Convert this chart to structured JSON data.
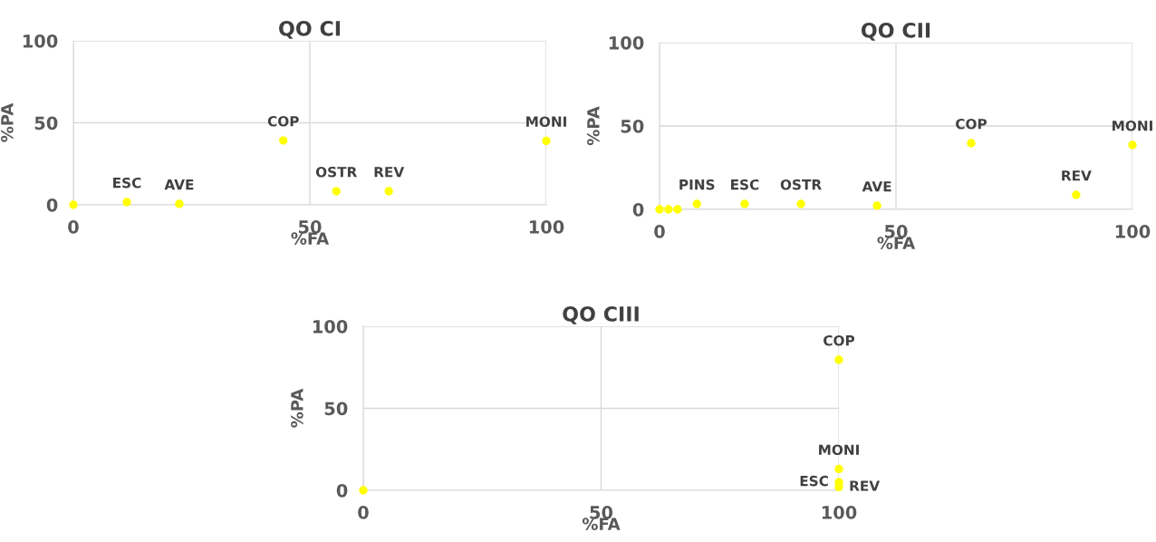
{
  "chart_data": [
    {
      "type": "scatter",
      "title": "QO CI",
      "xlabel": "%FA",
      "ylabel": "%PA",
      "xlim": [
        0,
        100
      ],
      "ylim": [
        0,
        100
      ],
      "xticks": [
        0,
        50,
        100
      ],
      "yticks": [
        0,
        50,
        100
      ],
      "grid": true,
      "marker": "circle",
      "series": [
        {
          "color": "#ffff00",
          "x": [
            0,
            11.3,
            22.4,
            44.4,
            55.6,
            66.7,
            100
          ],
          "values": [
            0,
            1.7,
            0.6,
            39.2,
            8.3,
            8.3,
            39
          ]
        }
      ],
      "annotations": [
        {
          "text": "ESC",
          "x": 11.3,
          "y": 1.7
        },
        {
          "text": "AVE",
          "x": 22.4,
          "y": 0.6
        },
        {
          "text": "COP",
          "x": 44.4,
          "y": 39.2
        },
        {
          "text": "OSTR",
          "x": 55.6,
          "y": 8.3
        },
        {
          "text": "REV",
          "x": 66.7,
          "y": 8.3
        },
        {
          "text": "MONI",
          "x": 100,
          "y": 39
        }
      ]
    },
    {
      "type": "scatter",
      "title": "QO CII",
      "xlabel": "%FA",
      "ylabel": "%PA",
      "xlim": [
        0,
        100
      ],
      "ylim": [
        0,
        100
      ],
      "xticks": [
        0,
        50,
        100
      ],
      "yticks": [
        0,
        50,
        100
      ],
      "grid": true,
      "marker": "circle",
      "series": [
        {
          "color": "#ffff00",
          "x": [
            0,
            1.9,
            3.8,
            7.9,
            18,
            29.9,
            46,
            65.9,
            88.1,
            100
          ],
          "values": [
            0,
            0,
            0,
            3.3,
            3.3,
            3.3,
            2.2,
            39.7,
            8.7,
            38.6
          ]
        }
      ],
      "annotations": [
        {
          "text": "PINS",
          "x": 7.9,
          "y": 3.3
        },
        {
          "text": "ESC",
          "x": 18,
          "y": 3.3
        },
        {
          "text": "OSTR",
          "x": 29.9,
          "y": 3.3
        },
        {
          "text": "AVE",
          "x": 46,
          "y": 2.2
        },
        {
          "text": "COP",
          "x": 65.9,
          "y": 39.7
        },
        {
          "text": "REV",
          "x": 88.1,
          "y": 8.7
        },
        {
          "text": "MONI",
          "x": 100,
          "y": 38.6
        }
      ]
    },
    {
      "type": "scatter",
      "title": "QO CIII",
      "xlabel": "%FA",
      "ylabel": "%PA",
      "xlim": [
        0,
        100
      ],
      "ylim": [
        0,
        100
      ],
      "xticks": [
        0,
        50,
        100
      ],
      "yticks": [
        0,
        50,
        100
      ],
      "grid": true,
      "marker": "circle",
      "series": [
        {
          "color": "#ffff00",
          "x": [
            0,
            100,
            100,
            100,
            100
          ],
          "values": [
            0,
            79.6,
            13,
            5,
            2
          ]
        }
      ],
      "annotations": [
        {
          "text": "COP",
          "x": 100,
          "y": 79.6
        },
        {
          "text": "MONI",
          "x": 100,
          "y": 13
        },
        {
          "text": "ESC",
          "x": 100,
          "y": 5
        },
        {
          "text": "REV",
          "x": 100,
          "y": 2
        }
      ]
    }
  ]
}
